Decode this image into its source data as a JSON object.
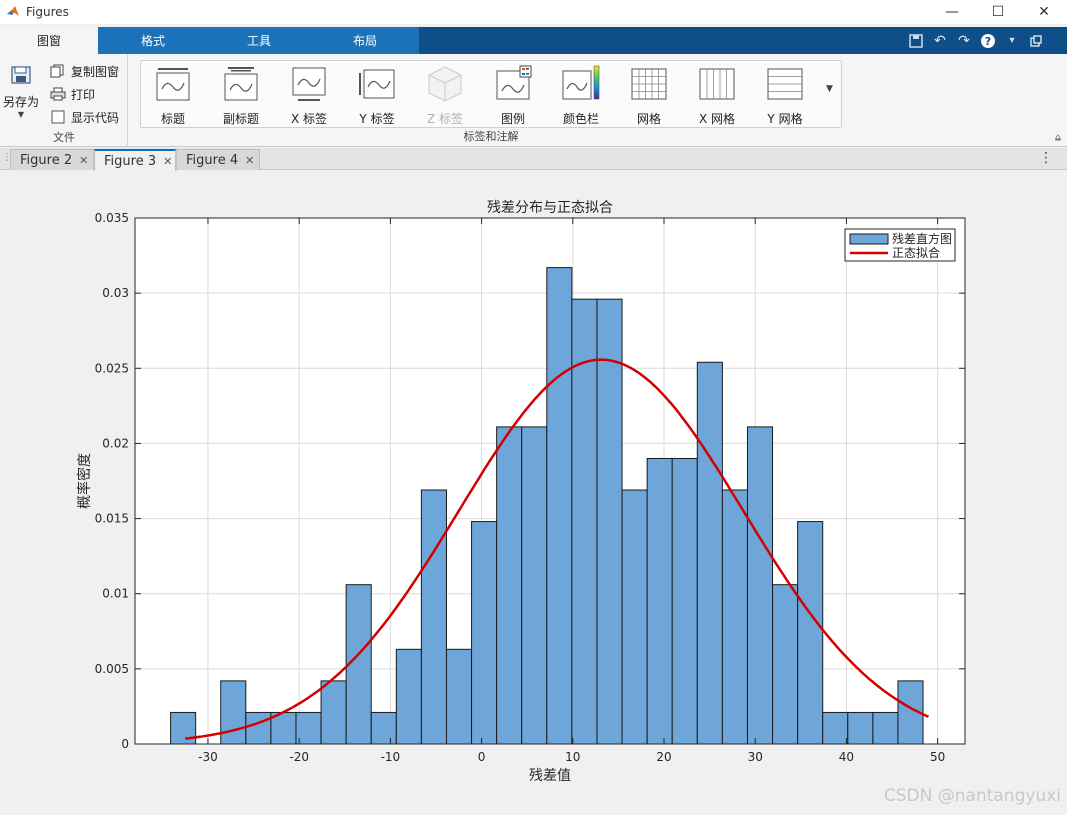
{
  "window": {
    "title": "Figures"
  },
  "ribbon_tabs": [
    {
      "label": "图窗",
      "active": true
    },
    {
      "label": "格式",
      "active": false
    },
    {
      "label": "工具",
      "active": false
    },
    {
      "label": "布局",
      "active": false
    }
  ],
  "file_group": {
    "save_as": "另存为",
    "copy_figure": "复制图窗",
    "print": "打印",
    "show_code": "显示代码",
    "group_label": "文件"
  },
  "labels_group": {
    "group_label": "标签和注解",
    "buttons": [
      {
        "label": "标题",
        "icon": "title-icon",
        "disabled": false
      },
      {
        "label": "副标题",
        "icon": "subtitle-icon",
        "disabled": false
      },
      {
        "label": "X 标签",
        "icon": "xlabel-icon",
        "disabled": false
      },
      {
        "label": "Y 标签",
        "icon": "ylabel-icon",
        "disabled": false
      },
      {
        "label": "Z 标签",
        "icon": "zlabel-icon",
        "disabled": true
      },
      {
        "label": "图例",
        "icon": "legend-icon",
        "disabled": false
      },
      {
        "label": "颜色栏",
        "icon": "colorbar-icon",
        "disabled": false
      },
      {
        "label": "网格",
        "icon": "grid-icon",
        "disabled": false
      },
      {
        "label": "X 网格",
        "icon": "xgrid-icon",
        "disabled": false
      },
      {
        "label": "Y 网格",
        "icon": "ygrid-icon",
        "disabled": false
      }
    ]
  },
  "doc_tabs": [
    {
      "label": "Figure 2",
      "active": false
    },
    {
      "label": "Figure 3",
      "active": true
    },
    {
      "label": "Figure 4",
      "active": false
    }
  ],
  "watermark": "CSDN @nantangyuxi",
  "colors": {
    "bar_fill": "#6ea6d9",
    "bar_edge": "#1a1a1a",
    "fit_line": "#d40000",
    "accent": "#1c72b8"
  },
  "chart_data": {
    "type": "bar",
    "title": "残差分布与正态拟合",
    "xlabel": "残差值",
    "ylabel": "概率密度",
    "xlim": [
      -38,
      53
    ],
    "ylim": [
      0,
      0.035
    ],
    "xticks": [
      -30,
      -20,
      -10,
      0,
      10,
      20,
      30,
      40,
      50
    ],
    "yticks": [
      0,
      0.005,
      0.01,
      0.015,
      0.02,
      0.025,
      0.03,
      0.035
    ],
    "ytick_labels": [
      "0",
      "0.005",
      "0.01",
      "0.015",
      "0.02",
      "0.025",
      "0.03",
      "0.035"
    ],
    "grid": true,
    "legend_position": "top-right",
    "legend": [
      "残差直方图",
      "正态拟合"
    ],
    "bin_width": 2.75,
    "bin_edges_start": -34.1,
    "histogram": [
      0.0021,
      0,
      0.0042,
      0.0021,
      0.0021,
      0.0021,
      0.0042,
      0.0106,
      0.0021,
      0.0063,
      0.0169,
      0.0063,
      0.0148,
      0.0211,
      0.0211,
      0.0317,
      0.0296,
      0.0296,
      0.0169,
      0.019,
      0.019,
      0.0254,
      0.0169,
      0.0211,
      0.0106,
      0.0148,
      0.0021,
      0.0021,
      0.0021,
      0.0042
    ],
    "normal_fit": {
      "mean": 13.1,
      "std": 15.6,
      "x_range": [
        -32.5,
        49
      ]
    }
  }
}
